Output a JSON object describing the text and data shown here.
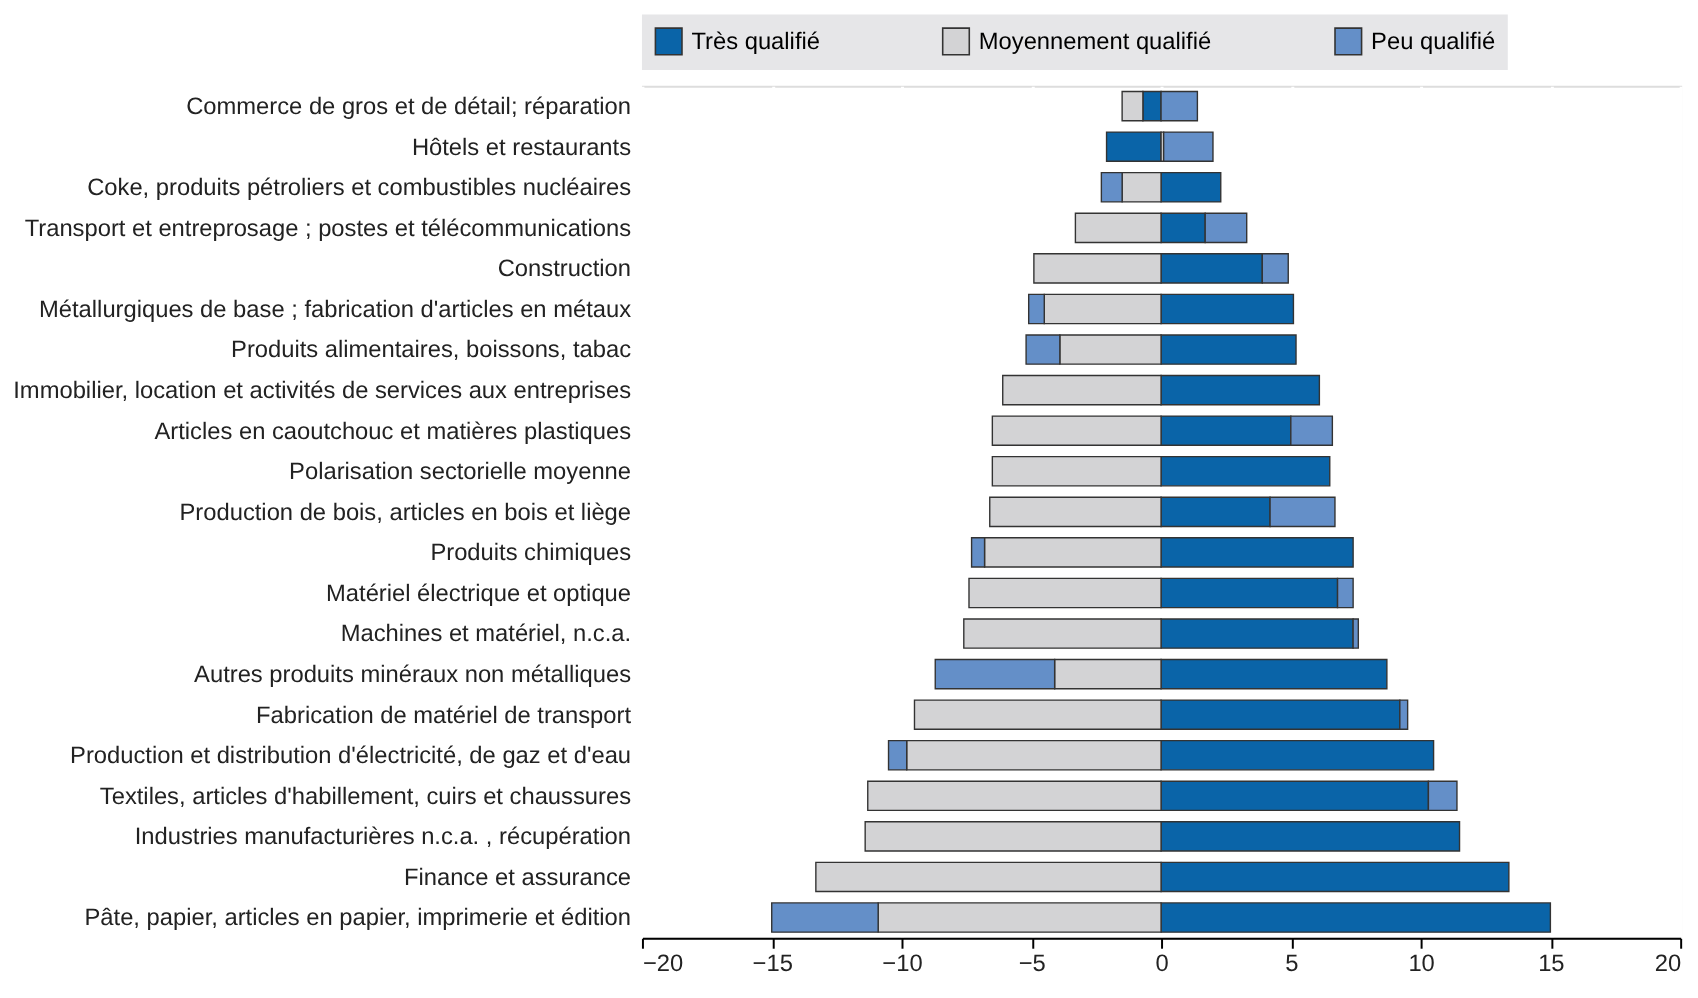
{
  "chart_data": {
    "type": "bar",
    "orientation": "horizontal",
    "stacked": true,
    "categories": [
      "Commerce de gros et de détail; réparation",
      "Hôtels et restaurants",
      "Coke, produits pétroliers et combustibles nucléaires",
      "Transport et entreprosage ; postes et télécommunications",
      "Construction",
      "Métallurgiques de base ; fabrication d'articles en métaux",
      "Produits alimentaires, boissons, tabac",
      "Immobilier, location et activités de services aux entreprises",
      "Articles en caoutchouc et matières plastiques",
      "Polarisation sectorielle moyenne",
      "Production de bois, articles en bois et liège",
      "Produits chimiques",
      "Matériel électrique et optique",
      "Machines et matériel, n.c.a.",
      "Autres produits minéraux non métalliques",
      "Fabrication de matériel de transport",
      "Production et distribution d'électricité, de gaz et d'eau",
      "Textiles, articles d'habillement, cuirs et chaussures",
      "Industries manufacturières n.c.a. , récupération",
      "Finance et assurance",
      "Pâte, papier, articles en papier, imprimerie et édition"
    ],
    "series": [
      {
        "name": "Très qualifié",
        "color": "#0a64a8",
        "values": [
          -0.7,
          -2.1,
          2.3,
          1.7,
          3.9,
          5.1,
          5.2,
          6.1,
          5.0,
          6.5,
          4.2,
          7.4,
          6.8,
          7.4,
          8.7,
          9.2,
          10.5,
          10.3,
          11.5,
          13.4,
          15.0
        ]
      },
      {
        "name": "Moyennement qualifié",
        "color": "#d3d3d5",
        "values": [
          -0.8,
          0.1,
          -1.5,
          -3.3,
          -4.9,
          -4.5,
          -3.9,
          -6.1,
          -6.5,
          -6.5,
          -6.6,
          -6.8,
          -7.4,
          -7.6,
          -4.1,
          -9.5,
          -9.8,
          -11.3,
          -11.4,
          -13.3,
          -10.9
        ]
      },
      {
        "name": "Peu qualifié",
        "color": "#648fc8",
        "values": [
          1.4,
          1.9,
          -0.8,
          1.6,
          1.0,
          -0.6,
          -1.3,
          null,
          1.6,
          null,
          2.5,
          -0.5,
          0.6,
          0.2,
          -4.6,
          0.3,
          -0.7,
          1.1,
          null,
          null,
          -4.1
        ]
      }
    ],
    "xlim": [
      -20,
      20
    ],
    "xticks": [
      -20,
      -15,
      -10,
      -5,
      0,
      5,
      10,
      15,
      20
    ],
    "grid": true,
    "legend": "top"
  }
}
